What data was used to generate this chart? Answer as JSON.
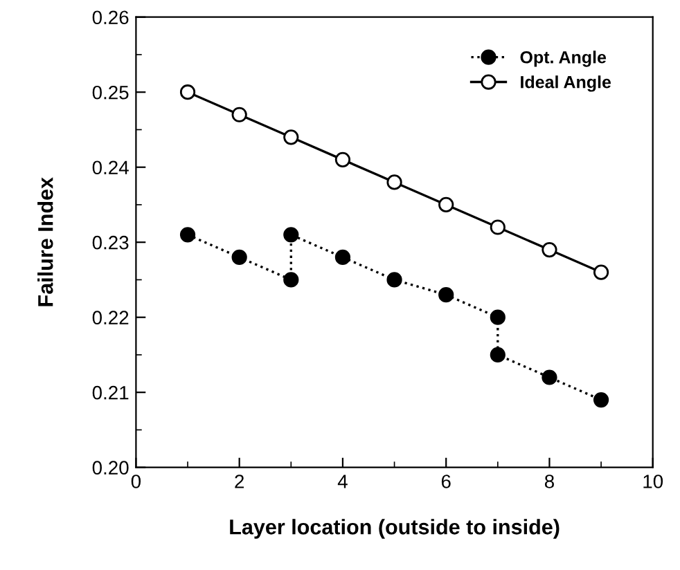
{
  "chart_data": {
    "type": "line",
    "xlabel": "Layer location (outside to inside)",
    "ylabel": "Failure Index",
    "xlim": [
      0,
      10
    ],
    "xticks": [
      0,
      2,
      4,
      6,
      8,
      10
    ],
    "ylim": [
      0.2,
      0.26
    ],
    "yticks": [
      {
        "value": 0.2,
        "label": "0.20"
      },
      {
        "value": 0.21,
        "label": "0.21"
      },
      {
        "value": 0.22,
        "label": "0.22"
      },
      {
        "value": 0.23,
        "label": "0.23"
      },
      {
        "value": 0.24,
        "label": "0.24"
      },
      {
        "value": 0.25,
        "label": "0.25"
      },
      {
        "value": 0.26,
        "label": "0.26"
      }
    ],
    "legend": "top right",
    "grid": false,
    "series": [
      {
        "name": "Opt. Angle",
        "color": "#000000",
        "marker": "circle",
        "line_style": "dotted",
        "x": [
          1,
          2,
          3,
          3,
          4,
          5,
          6,
          7,
          7,
          8,
          9
        ],
        "values": [
          0.231,
          0.228,
          0.225,
          0.231,
          0.228,
          0.225,
          0.223,
          0.22,
          0.215,
          0.212,
          0.209
        ]
      },
      {
        "name": "Ideal Angle",
        "color": "#000000",
        "marker": "circle",
        "line_style": "solid",
        "x": [
          1,
          2,
          3,
          4,
          5,
          6,
          7,
          8,
          9
        ],
        "values": [
          0.25,
          0.247,
          0.244,
          0.241,
          0.238,
          0.235,
          0.232,
          0.229,
          0.226
        ]
      }
    ]
  }
}
